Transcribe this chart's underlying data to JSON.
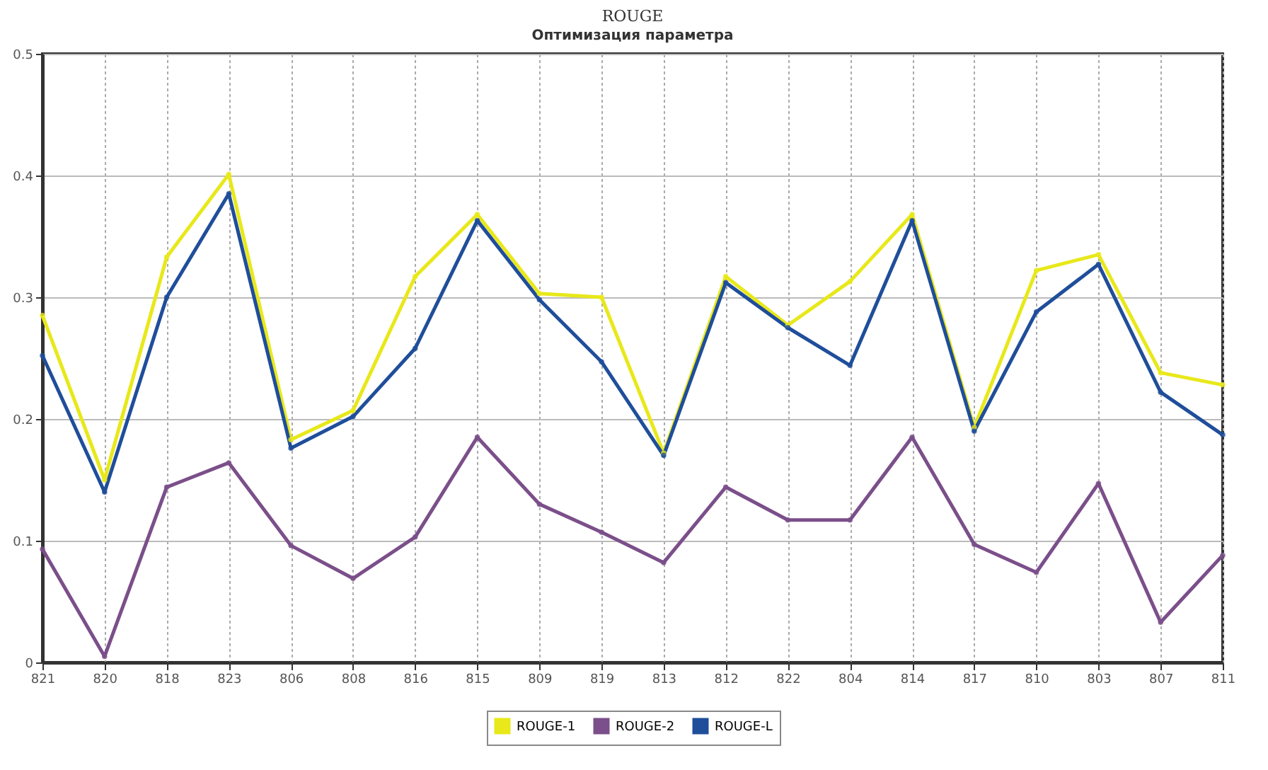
{
  "chart_data": {
    "type": "line",
    "title": "ROUGE",
    "subtitle": "Оптимизация параметра",
    "categories": [
      "821",
      "820",
      "818",
      "823",
      "806",
      "808",
      "816",
      "815",
      "809",
      "819",
      "813",
      "812",
      "822",
      "804",
      "814",
      "817",
      "810",
      "803",
      "807",
      "811"
    ],
    "series": [
      {
        "name": "ROUGE-1",
        "color": "#e8e81a",
        "values": [
          0.285,
          0.15,
          0.333,
          0.401,
          0.183,
          0.207,
          0.317,
          0.368,
          0.303,
          0.3,
          0.172,
          0.317,
          0.277,
          0.313,
          0.368,
          0.193,
          0.322,
          0.335,
          0.238,
          0.228
        ]
      },
      {
        "name": "ROUGE-2",
        "color": "#7b4f8a",
        "values": [
          0.093,
          0.005,
          0.144,
          0.164,
          0.096,
          0.069,
          0.103,
          0.185,
          0.13,
          0.107,
          0.082,
          0.144,
          0.117,
          0.117,
          0.185,
          0.097,
          0.074,
          0.147,
          0.033,
          0.088
        ]
      },
      {
        "name": "ROUGE-L",
        "color": "#1f4e9a",
        "values": [
          0.252,
          0.14,
          0.3,
          0.385,
          0.176,
          0.202,
          0.258,
          0.363,
          0.298,
          0.247,
          0.17,
          0.312,
          0.275,
          0.244,
          0.363,
          0.19,
          0.288,
          0.327,
          0.222,
          0.187
        ]
      }
    ],
    "ylim": [
      0,
      0.5
    ],
    "yticks": [
      0,
      0.1,
      0.2,
      0.3,
      0.4,
      0.5
    ],
    "grid": true,
    "legend": "bottom",
    "marker": "circle"
  }
}
